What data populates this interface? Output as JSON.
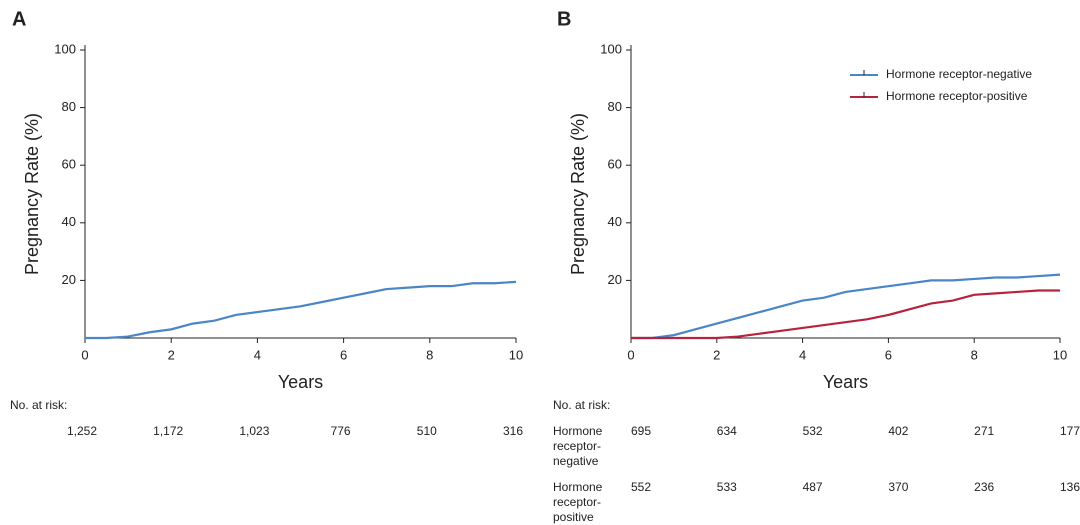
{
  "chart_data": [
    {
      "type": "line",
      "panel_label": "A",
      "y_label": "Pregnancy Rate (%)",
      "x_label": "Years",
      "x": [
        0,
        0.5,
        1,
        1.5,
        2,
        2.5,
        3,
        3.5,
        4,
        4.5,
        5,
        5.5,
        6,
        6.5,
        7,
        7.5,
        8,
        8.5,
        9,
        9.5,
        10
      ],
      "series": [
        {
          "color": "#4a86c5",
          "values": [
            0,
            0,
            0.5,
            2,
            3,
            5,
            6,
            8,
            9,
            10,
            11,
            12.5,
            14,
            15.5,
            17,
            17.5,
            18,
            18,
            19,
            19,
            19.5
          ]
        }
      ],
      "xlim": [
        0,
        10
      ],
      "ylim": [
        0,
        100
      ],
      "xticks": [
        0,
        2,
        4,
        6,
        8,
        10
      ],
      "yticks": [
        20,
        40,
        60,
        80,
        100
      ],
      "risk_table": {
        "title": "No. at risk:",
        "rows": [
          {
            "values": [
              "1,252",
              "1,172",
              "1,023",
              "776",
              "510",
              "316"
            ]
          }
        ]
      }
    },
    {
      "type": "line",
      "panel_label": "B",
      "y_label": "Pregnancy Rate (%)",
      "x_label": "Years",
      "x": [
        0,
        0.5,
        1,
        1.5,
        2,
        2.5,
        3,
        3.5,
        4,
        4.5,
        5,
        5.5,
        6,
        6.5,
        7,
        7.5,
        8,
        8.5,
        9,
        9.5,
        10
      ],
      "series": [
        {
          "name": "Hormone receptor-negative",
          "color": "#4a86c5",
          "values": [
            0,
            0,
            1,
            3,
            5,
            7,
            9,
            11,
            13,
            14,
            16,
            17,
            18,
            19,
            20,
            20,
            20.5,
            21,
            21,
            21.5,
            22
          ]
        },
        {
          "name": "Hormone receptor-positive",
          "color": "#b5243c",
          "values": [
            0,
            0,
            0,
            0,
            0,
            0.5,
            1.5,
            2.5,
            3.5,
            4.5,
            5.5,
            6.5,
            8,
            10,
            12,
            13,
            15,
            15.5,
            16,
            16.5,
            16.5
          ]
        }
      ],
      "xlim": [
        0,
        10
      ],
      "ylim": [
        0,
        100
      ],
      "xticks": [
        0,
        2,
        4,
        6,
        8,
        10
      ],
      "yticks": [
        20,
        40,
        60,
        80,
        100
      ],
      "legend_position": "upper right",
      "risk_table": {
        "title": "No. at risk:",
        "rows": [
          {
            "name": "Hormone receptor-negative",
            "values": [
              "695",
              "634",
              "532",
              "402",
              "271",
              "177"
            ]
          },
          {
            "name": "Hormone receptor-positive",
            "values": [
              "552",
              "533",
              "487",
              "370",
              "236",
              "136"
            ]
          }
        ]
      }
    }
  ]
}
